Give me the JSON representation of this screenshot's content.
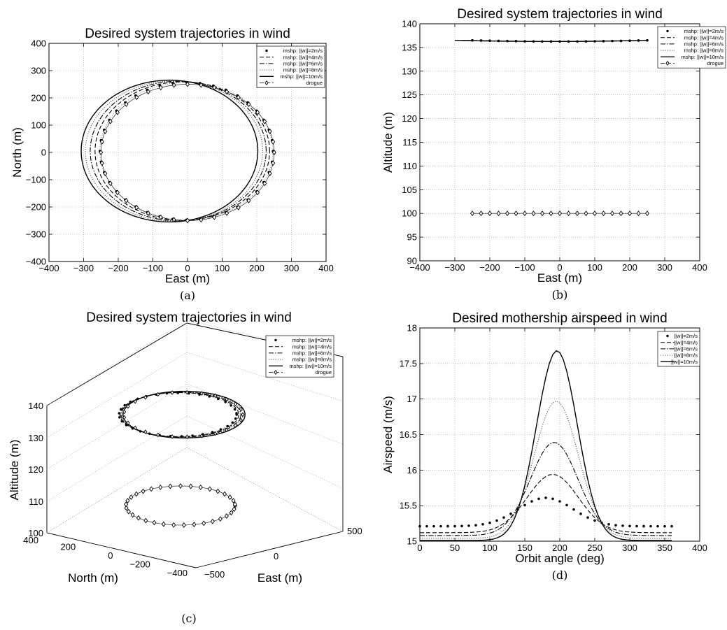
{
  "chart_data": [
    {
      "id": "a",
      "type": "line",
      "caption": "(a)",
      "title": "Desired system trajectories in wind",
      "xlabel": "East (m)",
      "ylabel": "North (m)",
      "xlim": [
        -400,
        400
      ],
      "ylim": [
        -400,
        400
      ],
      "xticks": [
        "−400",
        "−300",
        "−200",
        "−100",
        "0",
        "100",
        "200",
        "300",
        "400"
      ],
      "yticks": [
        "−400",
        "−300",
        "−200",
        "−100",
        "0",
        "100",
        "200",
        "300",
        "400"
      ],
      "grid": true,
      "legend_position": "top-right",
      "series": [
        {
          "name": "mshp: ||w||=2m/s",
          "style": "dots",
          "center": [
            -3,
            5
          ],
          "radii": [
            250,
            252
          ]
        },
        {
          "name": "mshp: ||w||=4m/s",
          "style": "dashed",
          "center": [
            -15,
            5
          ],
          "radii": [
            252,
            254
          ]
        },
        {
          "name": "mshp: ||w||=6m/s",
          "style": "dashdot",
          "center": [
            -27,
            5
          ],
          "radii": [
            254,
            256
          ]
        },
        {
          "name": "mshp: ||w||=8m/s",
          "style": "dotted",
          "center": [
            -39,
            5
          ],
          "radii": [
            256,
            258
          ]
        },
        {
          "name": "mshp: ||w||=10m/s",
          "style": "solid",
          "center": [
            -52,
            5
          ],
          "radii": [
            255,
            260
          ]
        },
        {
          "name": "drogue",
          "style": "diamond",
          "center": [
            0,
            0
          ],
          "radii": [
            250,
            250
          ]
        }
      ]
    },
    {
      "id": "b",
      "type": "line",
      "caption": "(b)",
      "title": "Desired system trajectories in wind",
      "xlabel": "East (m)",
      "ylabel": "Altitude (m)",
      "xlim": [
        -400,
        400
      ],
      "ylim": [
        90,
        140
      ],
      "xticks": [
        "−400",
        "−300",
        "−200",
        "−100",
        "0",
        "100",
        "200",
        "300",
        "400"
      ],
      "yticks": [
        "90",
        "95",
        "100",
        "105",
        "110",
        "115",
        "120",
        "125",
        "130",
        "135",
        "140"
      ],
      "grid": true,
      "legend_position": "top-right",
      "series": [
        {
          "name": "mshp: ||w||=2m/s",
          "style": "dots",
          "x": [
            -250,
            250
          ],
          "y": 136.5
        },
        {
          "name": "mshp: ||w||=4m/s",
          "style": "dashed",
          "x": [
            -265,
            250
          ],
          "y": 136.5
        },
        {
          "name": "mshp: ||w||=6m/s",
          "style": "dashdot",
          "x": [
            -280,
            250
          ],
          "y": 136.5
        },
        {
          "name": "mshp: ||w||=8m/s",
          "style": "dotted",
          "x": [
            -290,
            250
          ],
          "y": 136.5
        },
        {
          "name": "mshp: ||w||=10m/s",
          "style": "solid",
          "x": [
            -300,
            250
          ],
          "y": 136.5
        },
        {
          "name": "drogue",
          "style": "diamond",
          "x": [
            -250,
            250
          ],
          "y": 100
        }
      ]
    },
    {
      "id": "c",
      "type": "line",
      "caption": "(c)",
      "title": "Desired system trajectories in wind",
      "xlabel": "East (m)",
      "ylabel": "Altitude (m)",
      "zlabel": "North (m)",
      "altitude_ticks": [
        "100",
        "110",
        "120",
        "130",
        "140"
      ],
      "north_ticks": [
        "400",
        "200",
        "0",
        "−200",
        "−400"
      ],
      "east_ticks": [
        "−500",
        "0",
        "500"
      ],
      "grid": true,
      "legend_position": "top-right",
      "series": [
        {
          "name": "mshp: ||w||=2m/s",
          "style": "dots"
        },
        {
          "name": "mshp: ||w||=4m/s",
          "style": "dashed"
        },
        {
          "name": "mshp: ||w||=6m/s",
          "style": "dashdot"
        },
        {
          "name": "mshp: ||w||=8m/s",
          "style": "dotted"
        },
        {
          "name": "mshp: ||w||=10m/s",
          "style": "solid"
        },
        {
          "name": "drogue",
          "style": "diamond"
        }
      ]
    },
    {
      "id": "d",
      "type": "line",
      "caption": "(d)",
      "title": "Desired mothership airspeed in wind",
      "xlabel": "Orbit angle (deg)",
      "ylabel": "Airspeed (m/s)",
      "xlim": [
        0,
        400
      ],
      "ylim": [
        15,
        18
      ],
      "xticks": [
        "0",
        "50",
        "100",
        "150",
        "200",
        "250",
        "300",
        "350",
        "400"
      ],
      "yticks": [
        "15",
        "15.5",
        "16",
        "16.5",
        "17",
        "17.5",
        "18"
      ],
      "grid": true,
      "legend_position": "top-right",
      "series": [
        {
          "name": "||w||=2m/s",
          "style": "dots",
          "base": 15.21,
          "peak": 15.61,
          "peak_x": 180
        },
        {
          "name": "||w||=4m/s",
          "style": "dashed",
          "base": 15.12,
          "peak": 15.94,
          "peak_x": 190
        },
        {
          "name": "||w||=6m/s",
          "style": "dashdot",
          "base": 15.08,
          "peak": 16.39,
          "peak_x": 192
        },
        {
          "name": "||w||=8m/s",
          "style": "dotted",
          "base": 15.04,
          "peak": 16.97,
          "peak_x": 195
        },
        {
          "name": "||w||=10m/s",
          "style": "solid",
          "base": 15.01,
          "peak": 17.68,
          "peak_x": 196
        }
      ]
    }
  ]
}
